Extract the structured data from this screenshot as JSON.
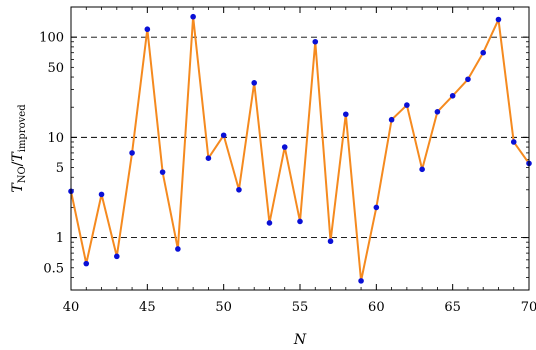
{
  "chart_data": {
    "type": "line",
    "xlabel": "N",
    "ylabel": {
      "main": "T",
      "sub1": "NO",
      "sep": "/",
      "main2": "T",
      "sub2": "improved"
    },
    "xlim": [
      40,
      70
    ],
    "ylim": [
      0.3,
      200
    ],
    "yscale": "log",
    "x_ticks": [
      40,
      45,
      50,
      55,
      60,
      65,
      70
    ],
    "y_ticks": [
      {
        "value": 0.5,
        "label": "0.5"
      },
      {
        "value": 1,
        "label": "1"
      },
      {
        "value": 5,
        "label": "5"
      },
      {
        "value": 10,
        "label": "10"
      },
      {
        "value": 50,
        "label": "50"
      },
      {
        "value": 100,
        "label": "100"
      }
    ],
    "reference_lines": [
      1,
      10,
      100
    ],
    "line_color": "#f58a1f",
    "marker_color": "#0a10d6",
    "series": [
      {
        "x": [
          40,
          41,
          42,
          43,
          44,
          45,
          46,
          47,
          48,
          49,
          50,
          51,
          52,
          53,
          54,
          55,
          56,
          57,
          58,
          59,
          60,
          61,
          62,
          63,
          64,
          65,
          66,
          67,
          68,
          69,
          70
        ],
        "y": [
          2.9,
          0.55,
          2.7,
          0.65,
          7.0,
          120,
          4.5,
          0.77,
          160,
          6.2,
          10.5,
          3.0,
          35,
          1.4,
          8.0,
          1.45,
          90,
          0.92,
          17,
          0.37,
          2.0,
          15,
          21,
          4.8,
          18,
          26,
          38,
          70,
          150,
          9.0,
          5.5
        ]
      }
    ]
  }
}
